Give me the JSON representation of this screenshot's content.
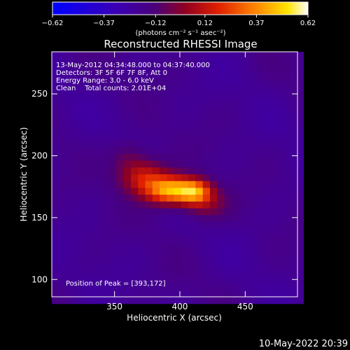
{
  "chart_data": {
    "type": "heatmap",
    "title": "Reconstructed RHESSI Image",
    "xlabel": "Heliocentric X (arcsec)",
    "ylabel": "Heliocentric Y (arcsec)",
    "xlim": [
      302,
      490
    ],
    "ylim": [
      86,
      284
    ],
    "x_ticks": [
      350,
      400,
      450
    ],
    "y_ticks": [
      100,
      150,
      200,
      250
    ],
    "colorbar": {
      "range": [
        -0.62,
        0.62
      ],
      "ticks": [
        -0.62,
        -0.37,
        -0.12,
        0.12,
        0.37,
        0.62
      ],
      "tick_labels": [
        "−0.62",
        "−0.37",
        "−0.12",
        "0.12",
        "0.37",
        "0.62"
      ],
      "unit_label": "(photons cm⁻² s⁻¹ asec⁻²)"
    },
    "peak_position": [
      393,
      172
    ],
    "annotations": [
      "13-May-2012 04:34:48.000 to 04:37:40.000",
      "Detectors: 3F 5F 6F 7F 8F, Att 0",
      "Energy Range: 3.0 - 6.0 keV",
      "Clean    Total counts: 2.01E+04"
    ],
    "peak_label": "Position of Peak = [393,172]",
    "sources": [
      {
        "x": 393,
        "y": 172,
        "amp": 0.62,
        "sx": 13,
        "sy": 8
      },
      {
        "x": 412,
        "y": 171,
        "amp": 0.46,
        "sx": 9,
        "sy": 7
      },
      {
        "x": 372,
        "y": 183,
        "amp": 0.34,
        "sx": 13,
        "sy": 10
      },
      {
        "x": 420,
        "y": 160,
        "amp": 0.18,
        "sx": 12,
        "sy": 9
      },
      {
        "x": 360,
        "y": 200,
        "amp": 0.12,
        "sx": 10,
        "sy": 9
      }
    ],
    "background_level": -0.2
  },
  "footer": {
    "timestamp": "10-May-2022 20:39"
  }
}
